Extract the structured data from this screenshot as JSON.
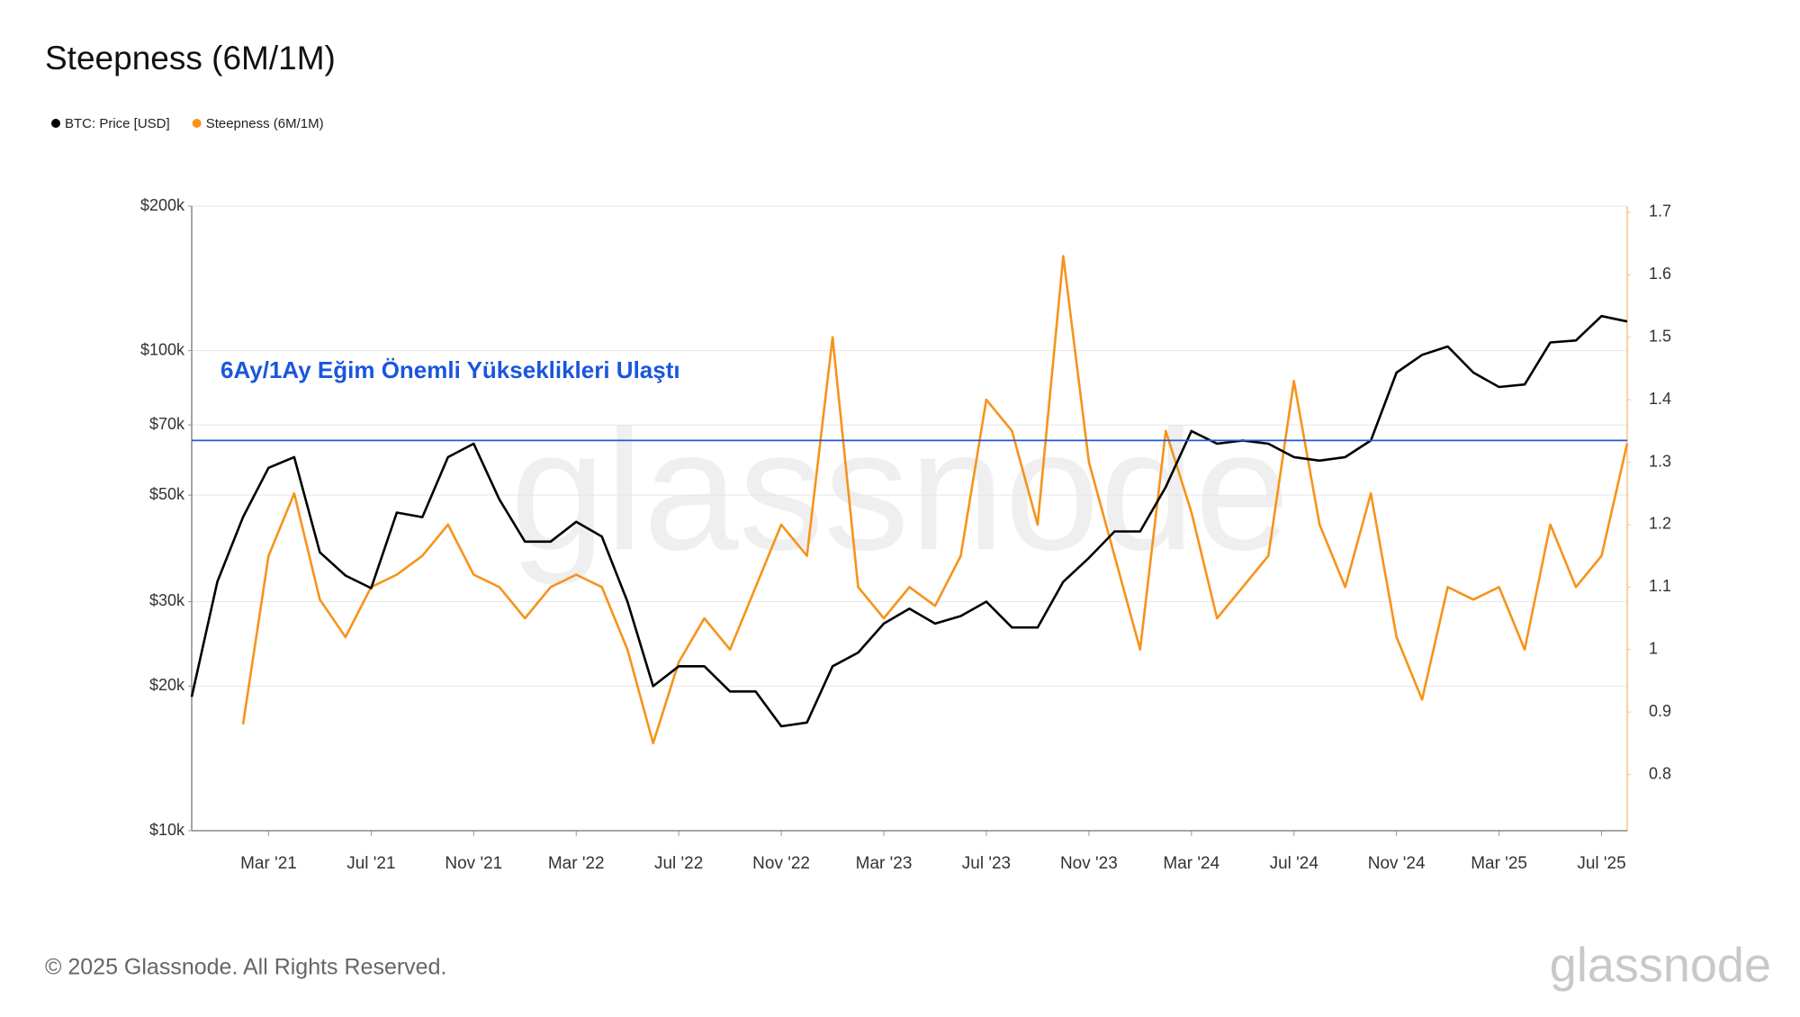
{
  "chart_data": {
    "type": "line",
    "title": "Steepness (6M/1M)",
    "annotation": "6Ay/1Ay Eğim Önemli Yükseklikleri Ulaştı",
    "watermark": "glassnode",
    "copyright": "© 2025 Glassnode. All Rights Reserved.",
    "logo": "glassnode",
    "log_scale": true,
    "grid": true,
    "legend": "top-left",
    "reference_line": {
      "value": 65000,
      "color": "#1c5bd6"
    },
    "x": [
      "2020-12",
      "2021-01",
      "2021-02",
      "2021-03",
      "2021-04",
      "2021-05",
      "2021-06",
      "2021-07",
      "2021-08",
      "2021-09",
      "2021-10",
      "2021-11",
      "2021-12",
      "2022-01",
      "2022-02",
      "2022-03",
      "2022-04",
      "2022-05",
      "2022-06",
      "2022-07",
      "2022-08",
      "2022-09",
      "2022-10",
      "2022-11",
      "2022-12",
      "2023-01",
      "2023-02",
      "2023-03",
      "2023-04",
      "2023-05",
      "2023-06",
      "2023-07",
      "2023-08",
      "2023-09",
      "2023-10",
      "2023-11",
      "2023-12",
      "2024-01",
      "2024-02",
      "2024-03",
      "2024-04",
      "2024-05",
      "2024-06",
      "2024-07",
      "2024-08",
      "2024-09",
      "2024-10",
      "2024-11",
      "2024-12",
      "2025-01",
      "2025-02",
      "2025-03",
      "2025-04",
      "2025-05",
      "2025-06",
      "2025-07",
      "2025-08"
    ],
    "xlim": [
      "2020-12",
      "2025-08"
    ],
    "xticks": [
      {
        "value": "2021-03",
        "label": "Mar '21"
      },
      {
        "value": "2021-07",
        "label": "Jul '21"
      },
      {
        "value": "2021-11",
        "label": "Nov '21"
      },
      {
        "value": "2022-03",
        "label": "Mar '22"
      },
      {
        "value": "2022-07",
        "label": "Jul '22"
      },
      {
        "value": "2022-11",
        "label": "Nov '22"
      },
      {
        "value": "2023-03",
        "label": "Mar '23"
      },
      {
        "value": "2023-07",
        "label": "Jul '23"
      },
      {
        "value": "2023-11",
        "label": "Nov '23"
      },
      {
        "value": "2024-03",
        "label": "Mar '24"
      },
      {
        "value": "2024-07",
        "label": "Jul '24"
      },
      {
        "value": "2024-11",
        "label": "Nov '24"
      },
      {
        "value": "2025-03",
        "label": "Mar '25"
      },
      {
        "value": "2025-07",
        "label": "Jul '25"
      }
    ],
    "ylim": [
      10000,
      200000
    ],
    "yticks": [
      {
        "value": 10000,
        "label": "$10k"
      },
      {
        "value": 20000,
        "label": "$20k"
      },
      {
        "value": 30000,
        "label": "$30k"
      },
      {
        "value": 50000,
        "label": "$50k"
      },
      {
        "value": 70000,
        "label": "$70k"
      },
      {
        "value": 100000,
        "label": "$100k"
      },
      {
        "value": 200000,
        "label": "$200k"
      }
    ],
    "y2lim": [
      0.71,
      1.71
    ],
    "y2ticks": [
      0.8,
      0.9,
      1,
      1.1,
      1.2,
      1.3,
      1.4,
      1.5,
      1.6,
      1.7
    ],
    "series": [
      {
        "name": "BTC: Price [USD]",
        "color": "#000000",
        "values": [
          19000,
          33000,
          45000,
          57000,
          60000,
          38000,
          34000,
          32000,
          46000,
          45000,
          60000,
          64000,
          49000,
          40000,
          40000,
          44000,
          41000,
          30000,
          20000,
          22000,
          22000,
          19500,
          19500,
          16500,
          16800,
          22000,
          23500,
          27000,
          29000,
          27000,
          28000,
          30000,
          26500,
          26500,
          33000,
          37000,
          42000,
          42000,
          52000,
          68000,
          64000,
          65000,
          64000,
          60000,
          59000,
          60000,
          65000,
          90000,
          98000,
          102000,
          90000,
          84000,
          85000,
          104000,
          105000,
          118000,
          115000
        ]
      },
      {
        "name": "Steepness (6M/1M)",
        "color": "#f7931a",
        "axis": "y2",
        "values": [
          null,
          null,
          0.88,
          1.15,
          1.25,
          1.08,
          1.02,
          1.1,
          1.12,
          1.15,
          1.2,
          1.12,
          1.1,
          1.05,
          1.1,
          1.12,
          1.1,
          1.0,
          0.85,
          0.98,
          1.05,
          1.0,
          1.1,
          1.2,
          1.15,
          1.5,
          1.1,
          1.05,
          1.1,
          1.07,
          1.15,
          1.4,
          1.35,
          1.2,
          1.63,
          1.3,
          1.15,
          1.0,
          1.35,
          1.22,
          1.05,
          1.1,
          1.15,
          1.43,
          1.2,
          1.1,
          1.25,
          1.02,
          0.92,
          1.1,
          1.08,
          1.1,
          1.0,
          1.2,
          1.1,
          1.15,
          1.33
        ]
      }
    ]
  }
}
